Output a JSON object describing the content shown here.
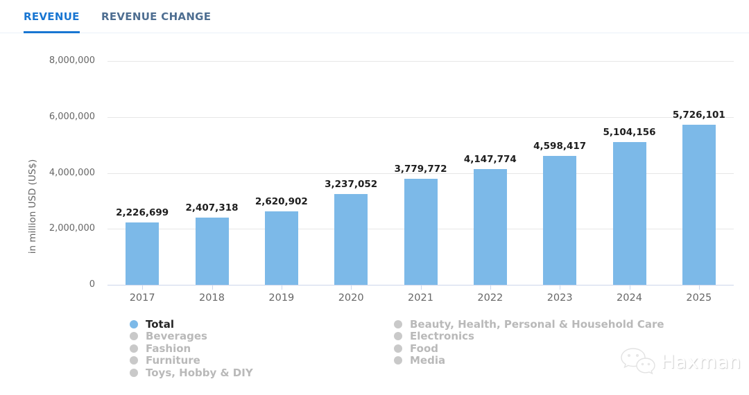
{
  "tabs": [
    {
      "label": "REVENUE",
      "active": true
    },
    {
      "label": "REVENUE CHANGE",
      "active": false
    }
  ],
  "chart_data": {
    "type": "bar",
    "categories": [
      "2017",
      "2018",
      "2019",
      "2020",
      "2021",
      "2022",
      "2023",
      "2024",
      "2025"
    ],
    "series": [
      {
        "name": "Total",
        "values": [
          2226699,
          2407318,
          2620902,
          3237052,
          3779772,
          4147774,
          4598417,
          5104156,
          5726101
        ]
      }
    ],
    "data_labels": [
      "2,226,699",
      "2,407,318",
      "2,620,902",
      "3,237,052",
      "3,779,772",
      "4,147,774",
      "4,598,417",
      "5,104,156",
      "5,726,101"
    ],
    "ylabel": "in million USD (US$)",
    "xlabel": "",
    "ylim": [
      0,
      8000000
    ],
    "yticks": [
      0,
      2000000,
      4000000,
      6000000,
      8000000
    ],
    "ytick_labels": [
      "0",
      "2,000,000",
      "4,000,000",
      "6,000,000",
      "8,000,000"
    ],
    "grid": true,
    "legend_position": "bottom"
  },
  "legend": {
    "columns": [
      [
        {
          "label": "Total",
          "active": true
        },
        {
          "label": "Beverages",
          "active": false
        },
        {
          "label": "Fashion",
          "active": false
        },
        {
          "label": "Furniture",
          "active": false
        },
        {
          "label": "Toys, Hobby & DIY",
          "active": false
        }
      ],
      [
        {
          "label": "Beauty, Health, Personal & Household Care",
          "active": false
        },
        {
          "label": "Electronics",
          "active": false
        },
        {
          "label": "Food",
          "active": false
        },
        {
          "label": "Media",
          "active": false
        }
      ]
    ]
  },
  "watermark": {
    "label": "Haxman",
    "icon": "wechat-icon"
  },
  "colors": {
    "accent": "#1976d2",
    "inactive_tab": "#4e6e91",
    "bar": "#7cb9e8",
    "grid": "#e6e6e6",
    "axis_line": "#ccd6eb",
    "axis_text": "#666666",
    "data_label": "#1d1d1d",
    "legend_inactive_text": "#b9b9b9",
    "legend_inactive_dot": "#c9c9c9"
  }
}
